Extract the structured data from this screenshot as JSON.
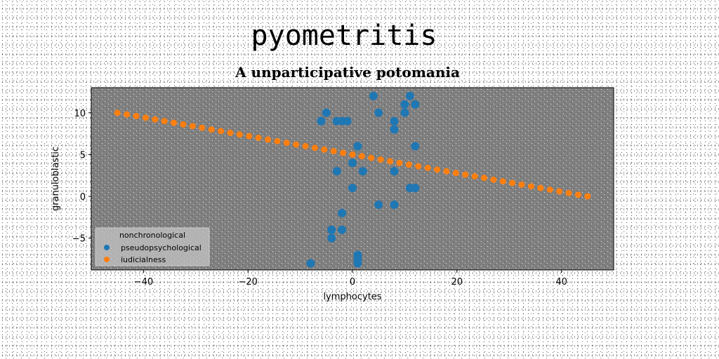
{
  "chart_data": {
    "type": "scatter",
    "suptitle": "pyometritis",
    "title": "A unparticipative potomania",
    "xlabel": "lymphocytes",
    "ylabel": "granuloblastic",
    "xlim": [
      -50,
      50
    ],
    "ylim": [
      -8.8,
      13
    ],
    "xticks": [
      -40,
      -20,
      0,
      20,
      40
    ],
    "yticks": [
      -5,
      0,
      5,
      10
    ],
    "grid": false,
    "legend": {
      "title": "nonchronological",
      "position": "lower-left"
    },
    "colors": {
      "axes_bg": "#808080",
      "series_1": "#1f77b4",
      "series_2": "#ff7f0e"
    },
    "series": [
      {
        "name": "pseudopsychological",
        "x": [
          4,
          5,
          11,
          12,
          10,
          10,
          -6,
          -5,
          -6,
          -3,
          -2,
          -1,
          8,
          8,
          8,
          1,
          1,
          12,
          -3,
          2,
          0,
          8,
          0,
          5,
          8,
          11,
          12,
          -2,
          -4,
          -2,
          -4,
          -4,
          1,
          1,
          -8,
          1
        ],
        "y": [
          12,
          10,
          12,
          11,
          11,
          10,
          9,
          10,
          9,
          9,
          9,
          9,
          9,
          8,
          8,
          6,
          6,
          6,
          3,
          3,
          4,
          3,
          1,
          -1,
          -1,
          1,
          1,
          -2,
          -4,
          -4,
          -4,
          -5,
          -7,
          -8,
          -8,
          -7.5
        ]
      },
      {
        "name": "iudicialness",
        "x": [
          -45,
          -43.2,
          -41.4,
          -39.6,
          -37.8,
          -36,
          -34.2,
          -32.4,
          -30.6,
          -28.8,
          -27,
          -25.2,
          -23.4,
          -21.6,
          -19.8,
          -18,
          -16.2,
          -14.4,
          -12.6,
          -10.8,
          -9,
          -7.2,
          -5.4,
          -3.6,
          -1.8,
          0,
          1.8,
          3.6,
          5.4,
          7.2,
          9,
          10.8,
          12.6,
          14.4,
          16.2,
          18,
          19.8,
          21.6,
          23.4,
          25.2,
          27,
          28.8,
          30.6,
          32.4,
          34.2,
          36,
          37.8,
          39.6,
          41.4,
          43.2,
          45
        ],
        "y": [
          10,
          9.8,
          9.6,
          9.4,
          9.2,
          9,
          8.8,
          8.6,
          8.4,
          8.2,
          8,
          7.8,
          7.6,
          7.4,
          7.2,
          7,
          6.8,
          6.6,
          6.4,
          6.2,
          6,
          5.8,
          5.6,
          5.4,
          5.2,
          5,
          4.8,
          4.6,
          4.4,
          4.2,
          4,
          3.8,
          3.6,
          3.4,
          3.2,
          3,
          2.8,
          2.6,
          2.4,
          2.2,
          2,
          1.8,
          1.6,
          1.4,
          1.2,
          1,
          0.8,
          0.6,
          0.4,
          0.2,
          0
        ]
      }
    ]
  }
}
